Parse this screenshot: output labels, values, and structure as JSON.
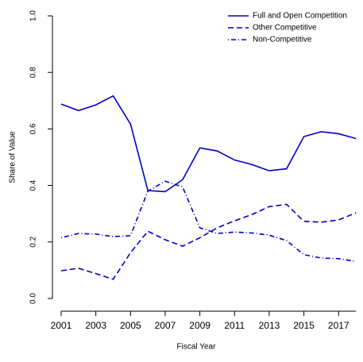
{
  "chart_data": {
    "type": "line",
    "x_label": "Fiscal Year",
    "y_label": "Share of Value",
    "x": [
      2001,
      2002,
      2003,
      2004,
      2005,
      2006,
      2007,
      2008,
      2009,
      2010,
      2011,
      2012,
      2013,
      2014,
      2015,
      2016,
      2017,
      2018
    ],
    "series": [
      {
        "name": "Full and Open Competition",
        "color": "#0000cc",
        "dash": "solid",
        "values": [
          0.688,
          0.665,
          0.685,
          0.717,
          0.617,
          0.382,
          0.378,
          0.42,
          0.533,
          0.522,
          0.49,
          0.474,
          0.452,
          0.459,
          0.573,
          0.59,
          0.583,
          0.566
        ]
      },
      {
        "name": "Other Competitive",
        "color": "#0000cc",
        "dash": "dashed",
        "values": [
          0.098,
          0.107,
          0.088,
          0.068,
          0.162,
          0.238,
          0.208,
          0.185,
          0.215,
          0.25,
          0.275,
          0.297,
          0.325,
          0.333,
          0.273,
          0.27,
          0.278,
          0.303
        ]
      },
      {
        "name": "Non-Competitive",
        "color": "#0000cc",
        "dash": "dotdash",
        "values": [
          0.215,
          0.23,
          0.228,
          0.219,
          0.222,
          0.38,
          0.415,
          0.395,
          0.25,
          0.23,
          0.235,
          0.232,
          0.224,
          0.205,
          0.155,
          0.143,
          0.141,
          0.131
        ]
      }
    ],
    "xlim": [
      2000.5,
      2018.5
    ],
    "ylim": [
      0,
      1
    ],
    "xticks": [
      2001,
      2003,
      2005,
      2007,
      2009,
      2011,
      2013,
      2015,
      2017
    ],
    "yticks": [
      {
        "value": 0,
        "label": "0.0"
      },
      {
        "value": 0.2,
        "label": "0.2"
      },
      {
        "value": 0.4,
        "label": "0.4"
      },
      {
        "value": 0.6,
        "label": "0.6"
      },
      {
        "value": 0.8,
        "label": "0.8"
      },
      {
        "value": 1,
        "label": "1.0"
      }
    ],
    "legend": "top-right"
  }
}
